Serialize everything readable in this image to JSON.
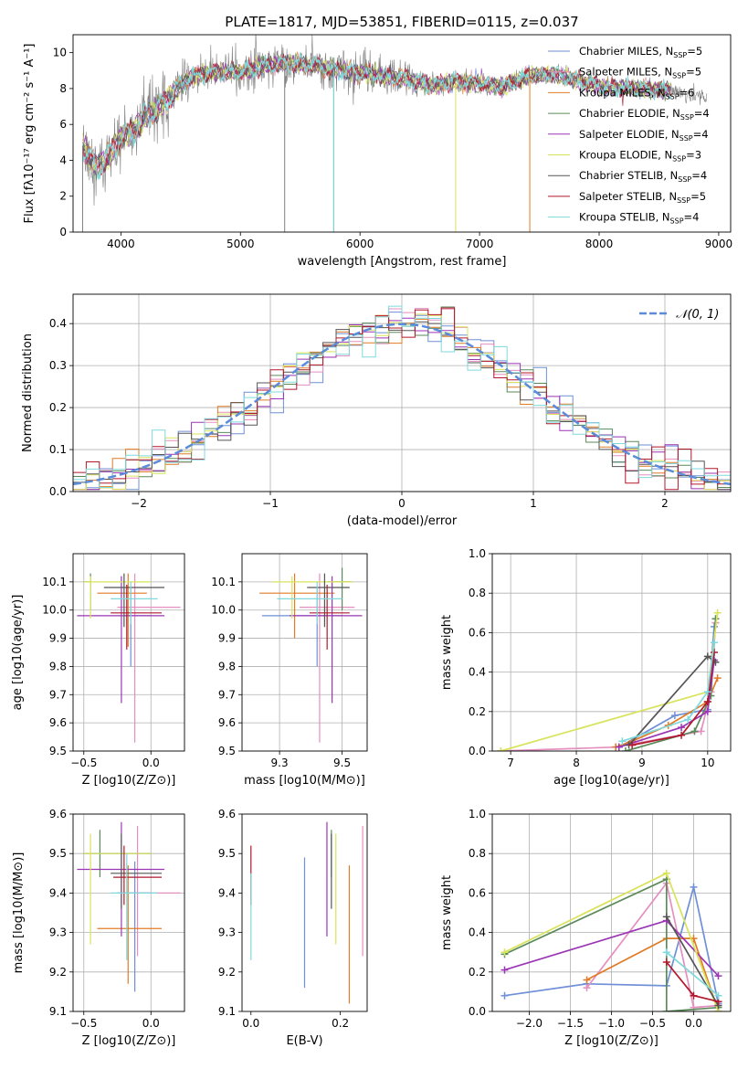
{
  "figure": {
    "title": "PLATE=1817, MJD=53851, FIBERID=0115, z=0.037"
  },
  "colors": {
    "Chabrier MILES": "#6f8fd6",
    "Salpeter MILES": "#e48fbf",
    "Kroupa MILES": "#e07b26",
    "Chabrier ELODIE": "#5a8a5a",
    "Salpeter ELODIE": "#9b35b5",
    "Kroupa ELODIE": "#d9e35a",
    "Chabrier STELIB": "#555555",
    "Salpeter STELIB": "#b2182b",
    "Kroupa STELIB": "#7fd9dc",
    "data": "#808080",
    "normal": "#5b8bd9"
  },
  "chart_data": [
    {
      "id": "spectrum",
      "type": "line",
      "title": "PLATE=1817, MJD=53851, FIBERID=0115, z=0.037",
      "xlabel": "wavelength [Angstrom, rest frame]",
      "ylabel": "Flux [fλ10⁻¹⁷ erg cm⁻² s⁻¹ A⁻¹]",
      "xlim": [
        3600,
        9100
      ],
      "ylim": [
        0,
        11
      ],
      "xticks": [
        4000,
        5000,
        6000,
        7000,
        8000,
        9000
      ],
      "yticks": [
        0,
        2,
        4,
        6,
        8,
        10
      ],
      "grid": false,
      "legend_position": "top-right",
      "legend": [
        {
          "name": "Chabrier MILES",
          "nssp": "5"
        },
        {
          "name": "Salpeter MILES",
          "nssp": "5"
        },
        {
          "name": "Kroupa MILES",
          "nssp": "6"
        },
        {
          "name": "Chabrier ELODIE",
          "nssp": "4"
        },
        {
          "name": "Salpeter ELODIE",
          "nssp": "4"
        },
        {
          "name": "Kroupa ELODIE",
          "nssp": "3"
        },
        {
          "name": "Chabrier STELIB",
          "nssp": "4"
        },
        {
          "name": "Salpeter STELIB",
          "nssp": "5"
        },
        {
          "name": "Kroupa STELIB",
          "nssp": "4"
        }
      ],
      "continuum": {
        "x": [
          3680,
          3800,
          3900,
          4000,
          4100,
          4200,
          4300,
          4400,
          4500,
          4600,
          4800,
          5000,
          5200,
          5400,
          5600,
          5800,
          6000,
          6200,
          6400,
          6600,
          6800,
          7000,
          7200,
          7400,
          7600,
          7800,
          8000,
          8200,
          8400,
          8600,
          8800
        ],
        "y": [
          4.8,
          3.6,
          4.2,
          5.3,
          5.6,
          6.4,
          6.8,
          7.5,
          8.2,
          8.7,
          8.9,
          8.9,
          9.3,
          9.4,
          9.3,
          9.0,
          8.9,
          8.7,
          8.5,
          8.2,
          8.4,
          8.3,
          8.1,
          8.7,
          8.8,
          8.5,
          8.1,
          8.0,
          8.0,
          7.9,
          7.6
        ]
      },
      "data_end_A": 8900,
      "model_end_A": 8600,
      "masked_lines": [
        {
          "series": "data",
          "x": [
            3680,
            5370,
            5780
          ]
        },
        {
          "series": "Kroupa STELIB",
          "x": [
            5780
          ]
        },
        {
          "series": "Kroupa ELODIE",
          "x": [
            6800
          ]
        },
        {
          "series": "Kroupa MILES",
          "x": [
            7420
          ]
        }
      ]
    },
    {
      "id": "residuals",
      "type": "line",
      "xlabel": "(data-model)/error",
      "ylabel": "Normed distribution",
      "xlim": [
        -2.5,
        2.5
      ],
      "ylim": [
        0,
        0.47
      ],
      "xticks": [
        -2,
        -1,
        0,
        1,
        2
      ],
      "yticks": [
        0.0,
        0.1,
        0.2,
        0.3,
        0.4
      ],
      "grid": true,
      "legend_position": "top-right",
      "reference": {
        "name": "𝒩(0, 1)",
        "mean": 0,
        "sigma": 1
      },
      "bin_width": 0.1
    },
    {
      "id": "age_vs_Z",
      "type": "scatter",
      "xlabel": "Z [log10(Z/Z⊙)]",
      "ylabel": "age  [log10(age/yr)]",
      "xlim": [
        -0.58,
        0.25
      ],
      "ylim": [
        9.5,
        10.2
      ],
      "xticks": [
        -0.5,
        0.0
      ],
      "yticks": [
        9.5,
        9.6,
        9.7,
        9.8,
        9.9,
        10.0,
        10.1
      ],
      "grid": true,
      "points": [
        {
          "series": "Chabrier MILES",
          "x": -0.15,
          "y": 9.98,
          "xe": [
            -0.2,
            0.0
          ],
          "ye": [
            9.8,
            10.08
          ]
        },
        {
          "series": "Salpeter MILES",
          "x": -0.12,
          "y": 10.01,
          "xe": [
            -0.25,
            0.22
          ],
          "ye": [
            9.53,
            10.13
          ]
        },
        {
          "series": "Kroupa MILES",
          "x": -0.17,
          "y": 10.06,
          "xe": [
            -0.4,
            -0.03
          ],
          "ye": [
            9.87,
            10.13
          ]
        },
        {
          "series": "Chabrier ELODIE",
          "x": -0.45,
          "y": 10.1,
          "xe": [
            -0.5,
            -0.45
          ],
          "ye": [
            10.0,
            10.13
          ]
        },
        {
          "series": "Salpeter ELODIE",
          "x": -0.22,
          "y": 9.98,
          "xe": [
            -0.55,
            0.1
          ],
          "ye": [
            9.67,
            10.12
          ]
        },
        {
          "series": "Kroupa ELODIE",
          "x": -0.45,
          "y": 10.1,
          "xe": [
            -0.5,
            -0.0
          ],
          "ye": [
            9.97,
            10.12
          ]
        },
        {
          "series": "Chabrier STELIB",
          "x": -0.2,
          "y": 10.08,
          "xe": [
            -0.35,
            0.1
          ],
          "ye": [
            9.94,
            10.13
          ]
        },
        {
          "series": "Salpeter STELIB",
          "x": -0.18,
          "y": 9.99,
          "xe": [
            -0.3,
            0.08
          ],
          "ye": [
            9.86,
            10.09
          ]
        },
        {
          "series": "Kroupa STELIB",
          "x": -0.15,
          "y": 10.04,
          "xe": [
            -0.3,
            0.05
          ],
          "ye": [
            9.95,
            10.1
          ]
        }
      ]
    },
    {
      "id": "age_vs_mass",
      "type": "scatter",
      "xlabel": "mass [log10(M/M⊙)]",
      "xlim": [
        9.1,
        9.6
      ],
      "ylim": [
        9.5,
        10.2
      ],
      "xticks": [
        9.25,
        9.5
      ],
      "yticks": [
        9.5,
        9.6,
        9.7,
        9.8,
        9.9,
        10.0,
        10.1
      ],
      "grid": true,
      "points": [
        {
          "series": "Chabrier MILES",
          "x": 9.4,
          "y": 9.98,
          "xe": [
            9.18,
            9.5
          ],
          "ye": [
            9.8,
            10.08
          ]
        },
        {
          "series": "Salpeter MILES",
          "x": 9.41,
          "y": 10.01,
          "xe": [
            9.33,
            9.55
          ],
          "ye": [
            9.53,
            10.13
          ]
        },
        {
          "series": "Kroupa MILES",
          "x": 9.31,
          "y": 10.06,
          "xe": [
            9.17,
            9.47
          ],
          "ye": [
            9.9,
            10.13
          ]
        },
        {
          "series": "Chabrier ELODIE",
          "x": 9.5,
          "y": 10.1,
          "xe": [
            9.44,
            9.54
          ],
          "ye": [
            10.0,
            10.15
          ]
        },
        {
          "series": "Salpeter ELODIE",
          "x": 9.46,
          "y": 9.98,
          "xe": [
            9.29,
            9.58
          ],
          "ye": [
            9.67,
            10.12
          ]
        },
        {
          "series": "Kroupa ELODIE",
          "x": 9.3,
          "y": 10.1,
          "xe": [
            9.22,
            9.54
          ],
          "ye": [
            9.97,
            10.12
          ]
        },
        {
          "series": "Chabrier STELIB",
          "x": 9.43,
          "y": 10.08,
          "xe": [
            9.36,
            9.53
          ],
          "ye": [
            9.94,
            10.13
          ]
        },
        {
          "series": "Salpeter STELIB",
          "x": 9.44,
          "y": 9.99,
          "xe": [
            9.37,
            9.53
          ],
          "ye": [
            9.86,
            10.09
          ]
        },
        {
          "series": "Kroupa STELIB",
          "x": 9.4,
          "y": 10.04,
          "xe": [
            9.24,
            9.5
          ],
          "ye": [
            9.95,
            10.1
          ]
        }
      ]
    },
    {
      "id": "weight_vs_age",
      "type": "line",
      "xlabel": "age  [log10(age/yr)]",
      "ylabel": "mass weight",
      "xlim": [
        6.72,
        10.35
      ],
      "ylim": [
        0,
        1.0
      ],
      "xticks": [
        7,
        8,
        9,
        10
      ],
      "yticks": [
        0.0,
        0.2,
        0.4,
        0.6,
        0.8,
        1.0
      ],
      "grid": true,
      "series": [
        {
          "name": "Chabrier MILES",
          "x": [
            8.65,
            9.5,
            10.0,
            10.1
          ],
          "y": [
            0.02,
            0.18,
            0.21,
            0.63
          ]
        },
        {
          "name": "Salpeter MILES",
          "x": [
            6.85,
            8.6,
            9.9,
            10.05,
            10.12
          ],
          "y": [
            0.0,
            0.02,
            0.1,
            0.3,
            0.65
          ]
        },
        {
          "name": "Kroupa MILES",
          "x": [
            8.6,
            8.85,
            9.4,
            10.0,
            10.15
          ],
          "y": [
            0.02,
            0.05,
            0.13,
            0.25,
            0.37
          ]
        },
        {
          "name": "Chabrier ELODIE",
          "x": [
            8.75,
            9.8,
            10.05,
            10.12
          ],
          "y": [
            0.0,
            0.1,
            0.28,
            0.67
          ]
        },
        {
          "name": "Salpeter ELODIE",
          "x": [
            8.65,
            9.6,
            10.0,
            10.1
          ],
          "y": [
            0.02,
            0.12,
            0.2,
            0.46
          ]
        },
        {
          "name": "Kroupa ELODIE",
          "x": [
            6.85,
            10.0,
            10.15
          ],
          "y": [
            0.0,
            0.3,
            0.7
          ]
        },
        {
          "name": "Chabrier STELIB",
          "x": [
            8.8,
            10.0,
            10.12
          ],
          "y": [
            0.03,
            0.48,
            0.45
          ]
        },
        {
          "name": "Salpeter STELIB",
          "x": [
            8.85,
            9.6,
            10.0,
            10.1
          ],
          "y": [
            0.03,
            0.08,
            0.25,
            0.5
          ]
        },
        {
          "name": "Kroupa STELIB",
          "x": [
            8.7,
            9.7,
            10.0,
            10.1
          ],
          "y": [
            0.05,
            0.16,
            0.3,
            0.55
          ]
        }
      ]
    },
    {
      "id": "mass_vs_Z",
      "type": "scatter",
      "xlabel": "Z [log10(Z/Z⊙)]",
      "ylabel": "mass [log10(M/M⊙)]",
      "xlim": [
        -0.58,
        0.25
      ],
      "ylim": [
        9.1,
        9.6
      ],
      "xticks": [
        -0.5,
        0.0
      ],
      "yticks": [
        9.1,
        9.2,
        9.3,
        9.4,
        9.5,
        9.6
      ],
      "grid": true,
      "points": [
        {
          "series": "Chabrier MILES",
          "x": -0.12,
          "y": 9.4,
          "xe": [
            -0.25,
            0.0
          ],
          "ye": [
            9.15,
            9.48
          ]
        },
        {
          "series": "Salpeter MILES",
          "x": -0.1,
          "y": 9.4,
          "xe": [
            -0.25,
            0.22
          ],
          "ye": [
            9.24,
            9.57
          ]
        },
        {
          "series": "Kroupa MILES",
          "x": -0.17,
          "y": 9.31,
          "xe": [
            -0.4,
            0.08
          ],
          "ye": [
            9.17,
            9.47
          ]
        },
        {
          "series": "Chabrier ELODIE",
          "x": -0.38,
          "y": 9.5,
          "xe": [
            -0.5,
            -0.0
          ],
          "ye": [
            9.44,
            9.56
          ]
        },
        {
          "series": "Salpeter ELODIE",
          "x": -0.22,
          "y": 9.46,
          "xe": [
            -0.55,
            0.1
          ],
          "ye": [
            9.29,
            9.58
          ]
        },
        {
          "series": "Kroupa ELODIE",
          "x": -0.45,
          "y": 9.5,
          "xe": [
            -0.5,
            -0.0
          ],
          "ye": [
            9.27,
            9.55
          ]
        },
        {
          "series": "Chabrier STELIB",
          "x": -0.22,
          "y": 9.45,
          "xe": [
            -0.3,
            0.08
          ],
          "ye": [
            9.36,
            9.55
          ]
        },
        {
          "series": "Salpeter STELIB",
          "x": -0.2,
          "y": 9.44,
          "xe": [
            -0.28,
            0.08
          ],
          "ye": [
            9.37,
            9.52
          ]
        },
        {
          "series": "Kroupa STELIB",
          "x": -0.18,
          "y": 9.4,
          "xe": [
            -0.3,
            0.05
          ],
          "ye": [
            9.23,
            9.5
          ]
        }
      ]
    },
    {
      "id": "mass_vs_ebv",
      "type": "scatter",
      "xlabel": "E(B-V)",
      "xlim": [
        -0.02,
        0.26
      ],
      "ylim": [
        9.1,
        9.6
      ],
      "xticks": [
        0.0,
        0.2
      ],
      "yticks": [
        9.1,
        9.2,
        9.3,
        9.4,
        9.5,
        9.6
      ],
      "grid": false,
      "points": [
        {
          "series": "Chabrier MILES",
          "x": 0.12,
          "y": 9.35,
          "ye": [
            9.16,
            9.49
          ]
        },
        {
          "series": "Salpeter MILES",
          "x": 0.25,
          "y": 9.45,
          "ye": [
            9.24,
            9.57
          ]
        },
        {
          "series": "Kroupa MILES",
          "x": 0.22,
          "y": 9.3,
          "ye": [
            9.12,
            9.47
          ]
        },
        {
          "series": "Chabrier ELODIE",
          "x": 0.18,
          "y": 9.5,
          "ye": [
            9.44,
            9.56
          ]
        },
        {
          "series": "Salpeter ELODIE",
          "x": 0.17,
          "y": 9.5,
          "ye": [
            9.29,
            9.58
          ]
        },
        {
          "series": "Kroupa ELODIE",
          "x": 0.19,
          "y": 9.45,
          "ye": [
            9.27,
            9.55
          ]
        },
        {
          "series": "Chabrier STELIB",
          "x": 0.18,
          "y": 9.45,
          "ye": [
            9.36,
            9.55
          ]
        },
        {
          "series": "Salpeter STELIB",
          "x": 0.0,
          "y": 9.45,
          "ye": [
            9.37,
            9.52
          ]
        },
        {
          "series": "Kroupa STELIB",
          "x": 0.0,
          "y": 9.35,
          "ye": [
            9.23,
            9.45
          ]
        }
      ]
    },
    {
      "id": "weight_vs_Z",
      "type": "line",
      "xlabel": "Z [log10(Z/Z⊙)]",
      "ylabel": "mass weight",
      "xlim": [
        -2.45,
        0.45
      ],
      "ylim": [
        0,
        1.0
      ],
      "xticks": [
        -2.0,
        -1.5,
        -1.0,
        -0.5,
        0.0
      ],
      "yticks": [
        0.0,
        0.2,
        0.4,
        0.6,
        0.8,
        1.0
      ],
      "grid": true,
      "series": [
        {
          "name": "Chabrier MILES",
          "x": [
            -2.3,
            -1.3,
            -0.33,
            0.0,
            0.3
          ],
          "y": [
            0.08,
            0.14,
            0.13,
            0.63,
            0.04
          ]
        },
        {
          "name": "Salpeter MILES",
          "x": [
            -1.3,
            -0.33,
            0.0,
            0.3
          ],
          "y": [
            0.12,
            0.65,
            0.02,
            0.03
          ]
        },
        {
          "name": "Kroupa MILES",
          "x": [
            -1.3,
            -0.33,
            0.0,
            0.3
          ],
          "y": [
            0.16,
            0.37,
            0.37,
            0.0
          ]
        },
        {
          "name": "Chabrier ELODIE",
          "x": [
            -2.3,
            -0.33,
            -0.33,
            0.3
          ],
          "y": [
            0.29,
            0.67,
            0.0,
            0.02
          ]
        },
        {
          "name": "Salpeter ELODIE",
          "x": [
            -2.3,
            -0.33,
            0.3
          ],
          "y": [
            0.21,
            0.46,
            0.18
          ]
        },
        {
          "name": "Kroupa ELODIE",
          "x": [
            -2.3,
            -0.33,
            0.3
          ],
          "y": [
            0.3,
            0.7,
            0.0
          ]
        },
        {
          "name": "Chabrier STELIB",
          "x": [
            -0.33,
            0.3
          ],
          "y": [
            0.48,
            0.03
          ]
        },
        {
          "name": "Salpeter STELIB",
          "x": [
            -0.33,
            0.0,
            0.3
          ],
          "y": [
            0.25,
            0.08,
            0.05
          ]
        },
        {
          "name": "Kroupa STELIB",
          "x": [
            -0.33,
            0.3
          ],
          "y": [
            0.3,
            0.08
          ]
        }
      ]
    }
  ]
}
